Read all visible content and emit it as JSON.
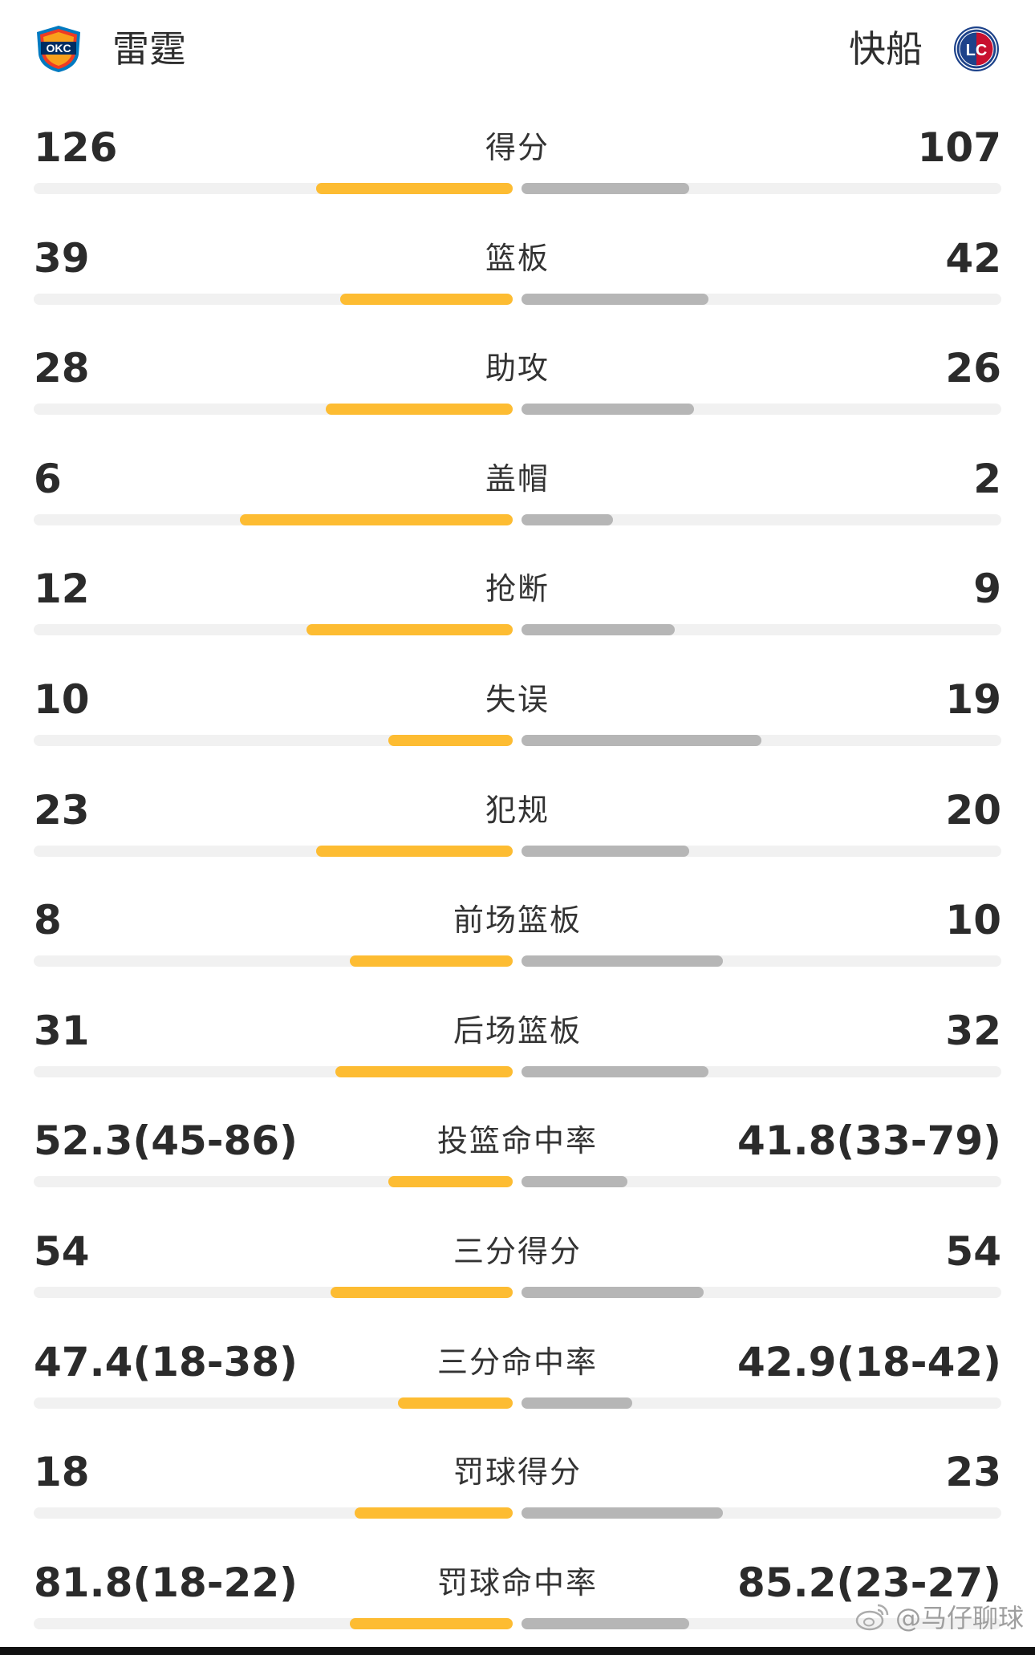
{
  "header": {
    "home_team": "雷霆",
    "away_team": "快船",
    "home_logo": "okc-thunder-logo",
    "away_logo": "la-clippers-logo"
  },
  "colors": {
    "home_bar": "#fdbc32",
    "away_bar": "#b6b6b6",
    "track": "#f1f1f1"
  },
  "stats": [
    {
      "label": "得分",
      "home": "126",
      "away": "107",
      "home_fill": 0.41,
      "away_fill": 0.35
    },
    {
      "label": "篮板",
      "home": "39",
      "away": "42",
      "home_fill": 0.36,
      "away_fill": 0.39
    },
    {
      "label": "助攻",
      "home": "28",
      "away": "26",
      "home_fill": 0.39,
      "away_fill": 0.36
    },
    {
      "label": "盖帽",
      "home": "6",
      "away": "2",
      "home_fill": 0.57,
      "away_fill": 0.19
    },
    {
      "label": "抢断",
      "home": "12",
      "away": "9",
      "home_fill": 0.43,
      "away_fill": 0.32
    },
    {
      "label": "失误",
      "home": "10",
      "away": "19",
      "home_fill": 0.26,
      "away_fill": 0.5
    },
    {
      "label": "犯规",
      "home": "23",
      "away": "20",
      "home_fill": 0.41,
      "away_fill": 0.35
    },
    {
      "label": "前场篮板",
      "home": "8",
      "away": "10",
      "home_fill": 0.34,
      "away_fill": 0.42
    },
    {
      "label": "后场篮板",
      "home": "31",
      "away": "32",
      "home_fill": 0.37,
      "away_fill": 0.39
    },
    {
      "label": "投篮命中率",
      "home": "52.3(45-86)",
      "away": "41.8(33-79)",
      "home_fill": 0.26,
      "away_fill": 0.22
    },
    {
      "label": "三分得分",
      "home": "54",
      "away": "54",
      "home_fill": 0.38,
      "away_fill": 0.38
    },
    {
      "label": "三分命中率",
      "home": "47.4(18-38)",
      "away": "42.9(18-42)",
      "home_fill": 0.24,
      "away_fill": 0.23
    },
    {
      "label": "罚球得分",
      "home": "18",
      "away": "23",
      "home_fill": 0.33,
      "away_fill": 0.42
    },
    {
      "label": "罚球命中率",
      "home": "81.8(18-22)",
      "away": "85.2(23-27)",
      "home_fill": 0.34,
      "away_fill": 0.35
    }
  ],
  "watermark": {
    "icon": "weibo-icon",
    "text": "@马仔聊球"
  }
}
